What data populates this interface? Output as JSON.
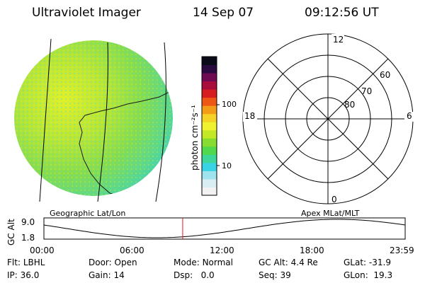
{
  "header": {
    "instrument": "Ultraviolet Imager",
    "date": "14 Sep 07",
    "time": "09:12:56 UT"
  },
  "imager": {
    "caption": "Geographic Lat/Lon"
  },
  "colorbar": {
    "unit_label": "photon cm⁻²s⁻¹",
    "ticks": [
      "100",
      "10"
    ],
    "colors": [
      "#f2f2f2",
      "#d8eef2",
      "#9fe3ee",
      "#38d4e6",
      "#3fd69a",
      "#52d84c",
      "#86dc30",
      "#c2e826",
      "#eff22e",
      "#f4d226",
      "#f39c18",
      "#ee5814",
      "#d81d20",
      "#a80c3a",
      "#6e0a52",
      "#2a0a40",
      "#0a0a18"
    ]
  },
  "polar": {
    "caption": "Apex MLat/MLT",
    "mlt_labels": {
      "top": "12",
      "left": "18",
      "right": "6",
      "bottom": "0"
    },
    "lat_labels": [
      "60",
      "70",
      "80"
    ]
  },
  "timeline": {
    "ylabel": "GC Alt",
    "yticks": [
      "9.0",
      "1.8"
    ],
    "xticks": [
      "00:00",
      "06:00",
      "12:00",
      "18:00",
      "23:59"
    ],
    "current_time_hours": 9.22,
    "marker_color": "#e8141e"
  },
  "footer": {
    "flt_label": "Flt:",
    "flt_value": "LBHL",
    "ip_label": "IP:",
    "ip_value": "36.0",
    "door_label": "Door:",
    "door_value": "Open",
    "gain_label": "Gain:",
    "gain_value": "14",
    "mode_label": "Mode:",
    "mode_value": "Normal",
    "dsp_label": "Dsp:",
    "dsp_value": "0.0",
    "gcalt_label": "GC Alt:",
    "gcalt_value": "4.4 Re",
    "seq_label": "Seq:",
    "seq_value": "39",
    "glat_label": "GLat:",
    "glat_value": "-31.9",
    "glon_label": "GLon:",
    "glon_value": "19.3"
  }
}
